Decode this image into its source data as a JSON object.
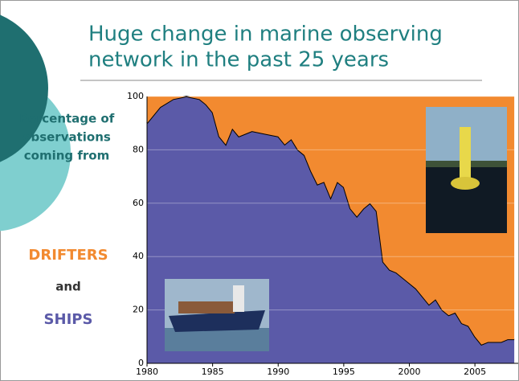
{
  "chart_data": {
    "type": "area",
    "title_lines": [
      "Huge change in marine observing",
      "network in the past 25 years"
    ],
    "ylabel_lines": [
      "Percentage of",
      "observations",
      "coming from"
    ],
    "connector": "and",
    "x": [
      1980,
      1980.5,
      1981,
      1982,
      1983,
      1984,
      1984.5,
      1985,
      1985.5,
      1986,
      1986.5,
      1987,
      1988,
      1989,
      1990,
      1990.5,
      1991,
      1991.5,
      1992,
      1992.5,
      1993,
      1993.5,
      1994,
      1994.5,
      1995,
      1995.5,
      1996,
      1996.5,
      1997,
      1997.5,
      1998,
      1998.5,
      1999,
      1999.5,
      2000,
      2000.5,
      2001,
      2001.5,
      2002,
      2002.5,
      2003,
      2003.5,
      2004,
      2004.5,
      2005,
      2005.5,
      2006,
      2006.5,
      2007,
      2007.5,
      2008
    ],
    "series": [
      {
        "name": "SHIPS",
        "color": "#5b5aa8",
        "label_color": "#5b5aa8",
        "values": [
          90,
          93,
          96,
          99,
          100,
          99,
          97,
          94,
          85,
          82,
          88,
          85,
          87,
          86,
          85,
          82,
          84,
          80,
          78,
          72,
          67,
          68,
          62,
          68,
          66,
          58,
          55,
          58,
          60,
          57,
          38,
          35,
          34,
          32,
          30,
          28,
          25,
          22,
          24,
          20,
          18,
          19,
          15,
          14,
          10,
          7,
          8,
          8,
          8,
          9,
          9
        ]
      },
      {
        "name": "DRIFTERS",
        "color": "#f28a30",
        "label_color": "#f28a30",
        "values": [
          10,
          7,
          4,
          1,
          0,
          1,
          3,
          6,
          15,
          18,
          12,
          15,
          13,
          14,
          15,
          18,
          16,
          20,
          22,
          28,
          33,
          32,
          38,
          32,
          34,
          42,
          45,
          42,
          40,
          43,
          62,
          65,
          66,
          68,
          70,
          72,
          75,
          78,
          76,
          80,
          82,
          81,
          85,
          86,
          90,
          93,
          92,
          92,
          92,
          91,
          91
        ]
      }
    ],
    "xlim": [
      1980,
      2008.3
    ],
    "ylim": [
      0,
      100
    ],
    "xticks": [
      1980,
      1985,
      1990,
      1995,
      2000,
      2005
    ],
    "yticks": [
      0,
      20,
      40,
      60,
      80,
      100
    ],
    "grid": true
  }
}
